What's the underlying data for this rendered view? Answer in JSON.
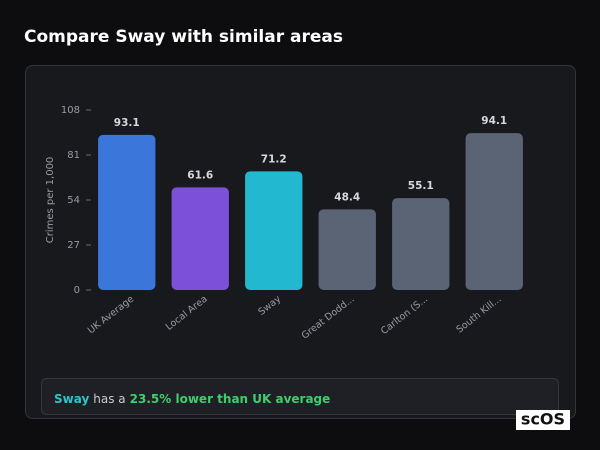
{
  "chart_data": {
    "type": "bar",
    "title": "Compare Sway with similar areas",
    "y_label": "Crimes per 1,000",
    "categories": [
      "UK Average",
      "Local Area",
      "Sway",
      "Great Dodd...",
      "Carlton (S...",
      "South Kill..."
    ],
    "values": [
      93.1,
      61.6,
      71.2,
      48.4,
      55.1,
      94.1
    ],
    "colors": [
      "#3b76db",
      "#7c50d8",
      "#22b9d0",
      "#5b6475",
      "#5b6475",
      "#5b6475"
    ],
    "ylim": [
      0,
      108
    ],
    "yticks": [
      0,
      27,
      54,
      81,
      108
    ],
    "grid": false,
    "annotation": {
      "subject": "Sway",
      "middle": "has a",
      "highlight": "23.5% lower than UK average"
    },
    "watermark": "scOS"
  }
}
